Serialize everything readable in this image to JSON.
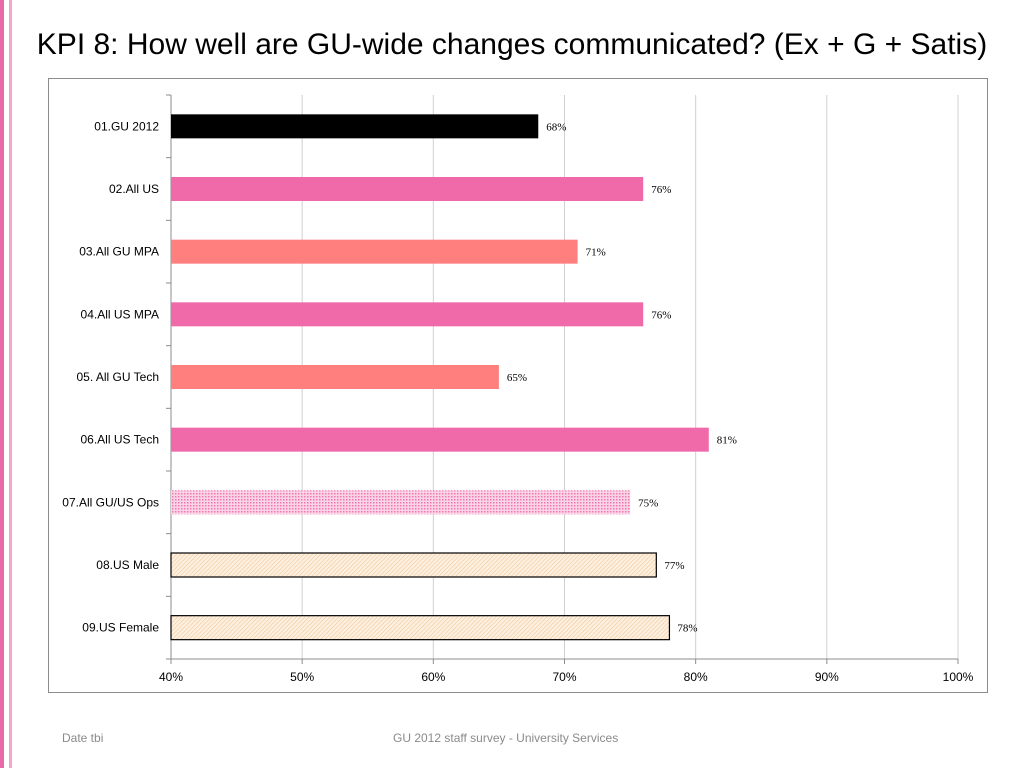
{
  "slide": {
    "title": "KPI 8: How well are GU-wide changes communicated? (Ex + G + Satis)",
    "footer_left": "Date tbi",
    "footer_center": "GU 2012 staff survey -  University Services",
    "stripe_colors": [
      "#e86aa8",
      "#f4a9cb"
    ]
  },
  "chart_data": {
    "type": "bar",
    "orientation": "horizontal",
    "categories": [
      "01.GU 2012",
      "02.All US",
      "03.All GU MPA",
      "04.All US MPA",
      "05. All GU Tech",
      "06.All US Tech",
      "07.All GU/US Ops",
      "08.US Male",
      "09.US Female"
    ],
    "values": [
      68,
      76,
      71,
      76,
      65,
      81,
      75,
      77,
      78
    ],
    "data_labels": [
      "68%",
      "76%",
      "71%",
      "76%",
      "65%",
      "81%",
      "75%",
      "77%",
      "78%"
    ],
    "xlim": [
      40,
      100
    ],
    "xticks": [
      40,
      50,
      60,
      70,
      80,
      90,
      100
    ],
    "xtick_labels": [
      "40%",
      "50%",
      "60%",
      "70%",
      "80%",
      "90%",
      "100%"
    ],
    "grid": true,
    "legend": "none",
    "bar_styles": [
      {
        "fill": "#000000",
        "pattern": "solid",
        "outline": "none"
      },
      {
        "fill": "#f06aaa",
        "pattern": "solid",
        "outline": "none"
      },
      {
        "fill": "#ff7f7f",
        "pattern": "solid",
        "outline": "none"
      },
      {
        "fill": "#f06aaa",
        "pattern": "solid",
        "outline": "none"
      },
      {
        "fill": "#ff7f7f",
        "pattern": "solid",
        "outline": "none"
      },
      {
        "fill": "#f06aaa",
        "pattern": "solid",
        "outline": "none"
      },
      {
        "fill": "#f8b0d2",
        "pattern": "dots",
        "outline": "none"
      },
      {
        "fill": "#fbe3c8",
        "pattern": "hatch",
        "outline": "#000000"
      },
      {
        "fill": "#fbe3c8",
        "pattern": "hatch",
        "outline": "#000000"
      }
    ]
  }
}
